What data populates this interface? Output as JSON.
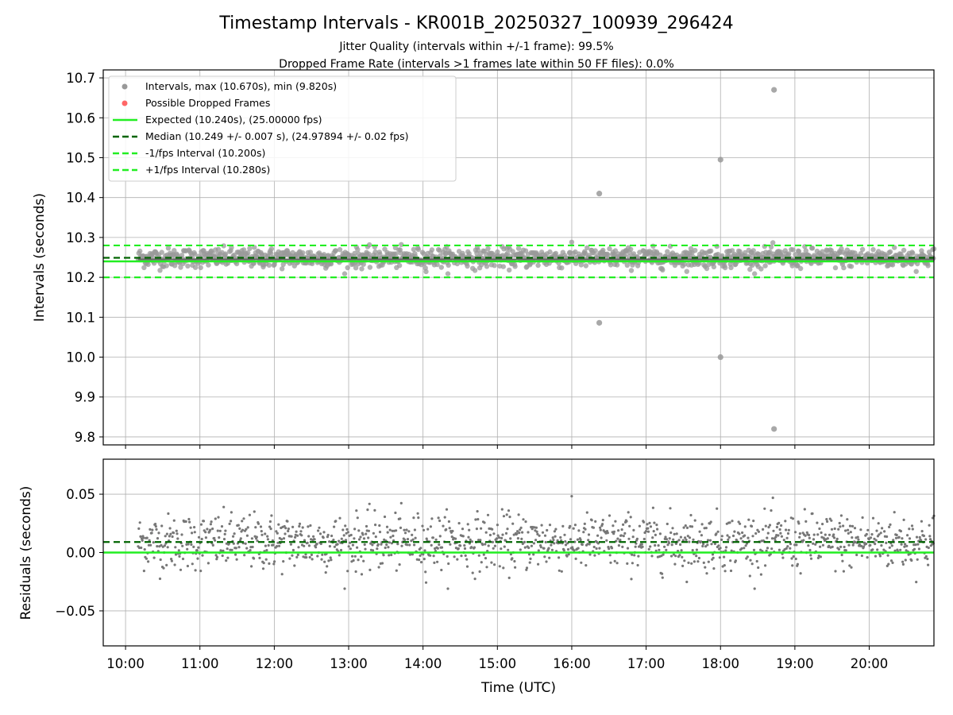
{
  "chart_data": [
    {
      "type": "scatter",
      "title": "Timestamp Intervals - KR001B_20250327_100939_296424",
      "subtitles": [
        "Jitter Quality (intervals within +/-1 frame): 99.5%",
        "Dropped Frame Rate (intervals >1 frames late within 50 FF files): 0.0%"
      ],
      "xlabel": "",
      "ylabel": "Intervals (seconds)",
      "xlim_hours": [
        9.7,
        20.87
      ],
      "ylim": [
        9.78,
        10.72
      ],
      "y_ticks": [
        "9.8",
        "9.9",
        "10.0",
        "10.1",
        "10.2",
        "10.3",
        "10.4",
        "10.5",
        "10.6",
        "10.7"
      ],
      "grid": true,
      "legend_position": "upper-left",
      "legend": [
        {
          "label": "Intervals, max (10.670s), min (9.820s)",
          "marker": "circle",
          "color": "#999999"
        },
        {
          "label": "Possible Dropped Frames",
          "marker": "circle",
          "color": "#ff6666"
        },
        {
          "label": "Expected (10.240s), (25.00000 fps)",
          "line": "solid",
          "color": "#22ee22"
        },
        {
          "label": "Median (10.249 +/- 0.007 s), (24.97894 +/- 0.02 fps)",
          "line": "dashed",
          "color": "#006400"
        },
        {
          "label": "-1/fps Interval (10.200s)",
          "line": "dashed",
          "color": "#22ee22"
        },
        {
          "label": "+1/fps Interval (10.280s)",
          "line": "dashed",
          "color": "#22ee22"
        }
      ],
      "reference_lines": {
        "expected": 10.24,
        "median": 10.249,
        "minus_one_frame": 10.2,
        "plus_one_frame": 10.28
      },
      "series": [
        {
          "name": "Intervals, max (10.670s), min (9.820s)",
          "x_range_hours": [
            10.17,
            20.87
          ],
          "center": 10.249,
          "spread": 0.012,
          "outliers": [
            {
              "x": 16.37,
              "y": 10.41
            },
            {
              "x": 16.37,
              "y": 10.086
            },
            {
              "x": 18.0,
              "y": 10.495
            },
            {
              "x": 18.0,
              "y": 10.0
            },
            {
              "x": 18.72,
              "y": 10.67
            },
            {
              "x": 18.72,
              "y": 9.82
            }
          ]
        }
      ]
    },
    {
      "type": "scatter",
      "xlabel": "Time (UTC)",
      "ylabel": "Residuals (seconds)",
      "xlim_hours": [
        9.7,
        20.87
      ],
      "ylim": [
        -0.08,
        0.08
      ],
      "x_ticks": [
        "10:00",
        "11:00",
        "12:00",
        "13:00",
        "14:00",
        "15:00",
        "16:00",
        "17:00",
        "18:00",
        "19:00",
        "20:00"
      ],
      "y_ticks": [
        "−0.05",
        "0.00",
        "0.05"
      ],
      "grid": true,
      "reference_lines": {
        "zero": 0.0,
        "median_offset": 0.009
      },
      "series": [
        {
          "name": "",
          "x_range_hours": [
            10.17,
            20.87
          ],
          "center": 0.009,
          "spread": 0.012,
          "color": "#777777"
        }
      ]
    }
  ]
}
